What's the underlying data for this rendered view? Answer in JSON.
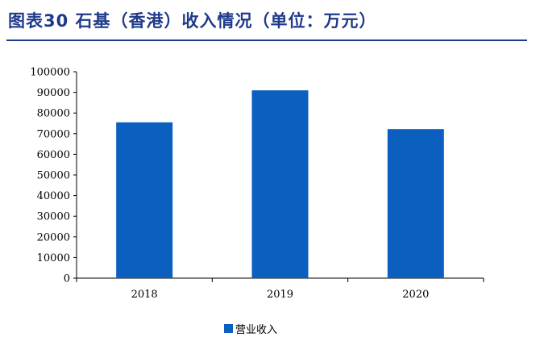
{
  "header": {
    "title": "图表30 石基（香港）收入情况（单位：万元）"
  },
  "colors": {
    "bar": "#0a5fbf",
    "title": "#1f3a8a"
  },
  "chart_data": {
    "type": "bar",
    "title": "图表30 石基（香港）收入情况（单位：万元）",
    "categories": [
      "2018",
      "2019",
      "2020"
    ],
    "series": [
      {
        "name": "营业收入",
        "values": [
          75500,
          91000,
          72200
        ]
      }
    ],
    "ylim": [
      0,
      100000
    ],
    "yticks": [
      "0",
      "10000",
      "20000",
      "30000",
      "40000",
      "50000",
      "60000",
      "70000",
      "80000",
      "90000",
      "100000"
    ],
    "grid": false,
    "legend": "bottom-center"
  }
}
